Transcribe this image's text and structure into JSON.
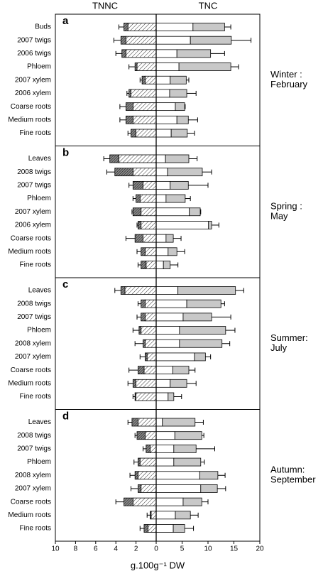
{
  "chart_data": {
    "type": "bar",
    "left_label": "TNNC",
    "right_label": "TNC",
    "xlabel": "g.100g⁻¹ DW",
    "xlim_left": [
      10,
      0
    ],
    "xticks_left": [
      10,
      8,
      6,
      4,
      2,
      0
    ],
    "xlim_right": [
      0,
      20
    ],
    "xticks_right": [
      5,
      10,
      15,
      20
    ],
    "panels": [
      {
        "label": "a",
        "season": [
          "Winter :",
          "February"
        ],
        "categories": [
          "Buds",
          "2007 twigs",
          "2006 twigs",
          "Phloem",
          "2007 xylem",
          "2006 xylem",
          "Coarse roots",
          "Medium roots",
          "Fine roots"
        ],
        "series": [
          {
            "axis": "left",
            "pattern": "hatch",
            "values": [
              2.8,
              3.0,
              3.0,
              1.9,
              1.1,
              2.5,
              2.3,
              2.3,
              2.0
            ]
          },
          {
            "axis": "left",
            "pattern": "hatch-dense",
            "values": [
              0.4,
              0.5,
              0.4,
              0.2,
              0.3,
              0.2,
              0.7,
              0.7,
              0.5
            ],
            "errors": [
              0.5,
              0.7,
              0.6,
              0.6,
              0.2,
              0.2,
              0.6,
              0.6,
              0.3
            ]
          },
          {
            "axis": "right",
            "color": "#ffffff",
            "values": [
              7.1,
              6.6,
              4.0,
              4.4,
              2.7,
              2.6,
              3.7,
              4.0,
              2.9
            ]
          },
          {
            "axis": "right",
            "color": "#c8c8c8",
            "values": [
              6.1,
              7.9,
              6.5,
              10.0,
              3.1,
              3.3,
              1.8,
              2.2,
              3.1
            ],
            "errors": [
              1.2,
              3.8,
              2.7,
              1.5,
              0.5,
              1.8,
              0.1,
              1.8,
              1.4
            ]
          }
        ]
      },
      {
        "label": "b",
        "season": [
          "Spring :",
          "May"
        ],
        "categories": [
          "Leaves",
          "2008 twigs",
          "2007 twigs",
          "Phloem",
          "2007 xylem",
          "2006 xylem",
          "Coarse roots",
          "Medium roots",
          "Fine roots"
        ],
        "series": [
          {
            "axis": "left",
            "pattern": "hatch",
            "values": [
              3.7,
              2.3,
              1.3,
              1.6,
              1.5,
              1.5,
              1.3,
              1.1,
              1.0
            ]
          },
          {
            "axis": "left",
            "pattern": "hatch-dense",
            "values": [
              0.9,
              1.8,
              1.0,
              0.4,
              0.8,
              0.3,
              0.8,
              0.4,
              0.5
            ],
            "errors": [
              0.6,
              0.8,
              0.4,
              0.3,
              0.1,
              0.1,
              0.9,
              0.4,
              0.3
            ]
          },
          {
            "axis": "right",
            "color": "#ffffff",
            "values": [
              1.8,
              2.2,
              2.7,
              1.9,
              6.4,
              10.1,
              1.9,
              2.3,
              1.4
            ]
          },
          {
            "axis": "right",
            "color": "#c8c8c8",
            "values": [
              4.5,
              6.7,
              3.5,
              3.7,
              2.1,
              0.6,
              1.4,
              1.7,
              1.3
            ],
            "errors": [
              1.6,
              1.8,
              3.8,
              1.0,
              0.1,
              1.4,
              1.5,
              1.5,
              1.5
            ]
          }
        ]
      },
      {
        "label": "c",
        "season": [
          "Summer:",
          "July"
        ],
        "categories": [
          "Leaves",
          "2008 twigs",
          "2007 twigs",
          "Phloem",
          "2008 xylem",
          "2007 xylem",
          "Coarse roots",
          "Medium roots",
          "Fine roots"
        ],
        "series": [
          {
            "axis": "left",
            "pattern": "hatch",
            "values": [
              3.1,
              1.1,
              1.1,
              1.5,
              1.1,
              0.9,
              1.2,
              2.0,
              2.0
            ]
          },
          {
            "axis": "left",
            "pattern": "hatch-dense",
            "values": [
              0.4,
              0.4,
              0.4,
              0.2,
              0.2,
              0.2,
              0.6,
              0.3,
              0.1
            ],
            "errors": [
              0.6,
              0.3,
              0.4,
              0.6,
              0.8,
              0.5,
              0.9,
              0.5,
              0.2
            ]
          },
          {
            "axis": "right",
            "color": "#ffffff",
            "values": [
              4.2,
              5.9,
              5.2,
              4.5,
              4.5,
              7.4,
              3.2,
              2.7,
              2.3
            ]
          },
          {
            "axis": "right",
            "color": "#c8c8c8",
            "values": [
              11.1,
              6.6,
              5.5,
              8.9,
              8.2,
              2.1,
              3.1,
              3.2,
              1.1
            ],
            "errors": [
              1.6,
              0.7,
              3.7,
              1.8,
              1.5,
              1.0,
              1.2,
              1.8,
              1.5
            ]
          }
        ]
      },
      {
        "label": "d",
        "season": [
          "Autumn:",
          "September"
        ],
        "categories": [
          "Leaves",
          "2008 twigs",
          "2007 twigs",
          "Phloem",
          "2008 xylem",
          "2007 xylem",
          "Coarse roots",
          "Medium roots",
          "Fine roots"
        ],
        "series": [
          {
            "axis": "left",
            "pattern": "hatch",
            "values": [
              1.8,
              1.1,
              0.6,
              1.6,
              1.8,
              1.5,
              2.3,
              0.5,
              0.8
            ]
          },
          {
            "axis": "left",
            "pattern": "hatch-dense",
            "values": [
              0.6,
              0.8,
              0.4,
              0.2,
              0.3,
              0.3,
              0.9,
              0.1,
              0.4
            ],
            "errors": [
              0.4,
              0.2,
              0.3,
              0.4,
              0.5,
              0.7,
              0.8,
              0.3,
              0.4
            ]
          },
          {
            "axis": "right",
            "color": "#ffffff",
            "values": [
              1.2,
              3.6,
              3.4,
              3.4,
              8.4,
              8.6,
              5.2,
              3.7,
              3.3
            ]
          },
          {
            "axis": "right",
            "color": "#c8c8c8",
            "values": [
              6.3,
              5.2,
              4.3,
              5.2,
              3.5,
              3.2,
              3.6,
              2.9,
              2.2
            ],
            "errors": [
              1.6,
              0.4,
              3.6,
              0.7,
              1.4,
              1.6,
              1.2,
              1.5,
              1.7
            ]
          }
        ]
      }
    ]
  }
}
